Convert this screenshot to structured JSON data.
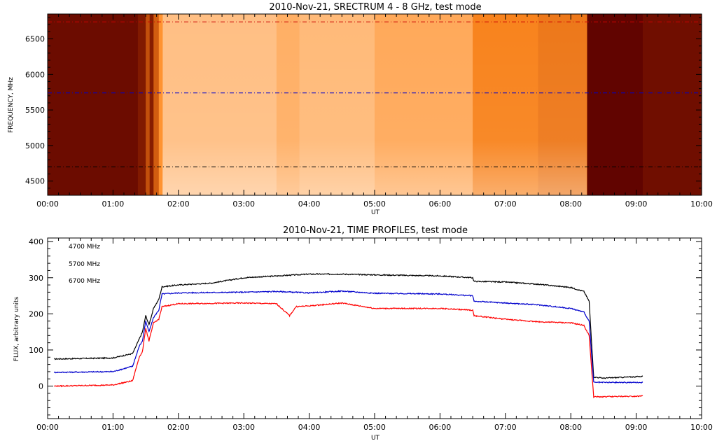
{
  "chart_data": [
    {
      "type": "heatmap",
      "title": "2010-Nov-21,  SRECTRUM 4 - 8 GHz,  test mode",
      "xlabel": "UT",
      "ylabel": "FREQUENCY, MHz",
      "x_ticks": [
        "00:00",
        "01:00",
        "02:00",
        "03:00",
        "04:00",
        "05:00",
        "06:00",
        "07:00",
        "08:00",
        "09:00",
        "10:00"
      ],
      "xlim_hours": [
        0,
        10
      ],
      "y_ticks": [
        4500,
        5000,
        5500,
        6000,
        6500
      ],
      "ylim": [
        4300,
        6850
      ],
      "colormap": [
        "#5a0000",
        "#a33000",
        "#ff8a20",
        "#ffe6cc"
      ],
      "time_segments": [
        {
          "start": 0.0,
          "end": 1.38,
          "level": 0.08
        },
        {
          "start": 1.38,
          "end": 1.5,
          "level": 0.18
        },
        {
          "start": 1.5,
          "end": 1.56,
          "level": 0.45
        },
        {
          "start": 1.56,
          "end": 1.62,
          "level": 0.2
        },
        {
          "start": 1.62,
          "end": 1.7,
          "level": 0.5
        },
        {
          "start": 1.7,
          "end": 1.76,
          "level": 0.7
        },
        {
          "start": 1.76,
          "end": 3.5,
          "level": 0.86
        },
        {
          "start": 3.5,
          "end": 3.85,
          "level": 0.8
        },
        {
          "start": 3.85,
          "end": 5.0,
          "level": 0.84
        },
        {
          "start": 5.0,
          "end": 6.5,
          "level": 0.78
        },
        {
          "start": 6.5,
          "end": 7.5,
          "level": 0.64
        },
        {
          "start": 7.5,
          "end": 8.25,
          "level": 0.6
        },
        {
          "start": 8.25,
          "end": 9.1,
          "level": 0.03
        },
        {
          "start": 9.1,
          "end": 10.0,
          "level": 0.1
        }
      ],
      "reference_lines": [
        {
          "freq": 4700,
          "color": "#000000"
        },
        {
          "freq": 5740,
          "color": "#0000cc"
        },
        {
          "freq": 6740,
          "color": "#cc0000"
        }
      ]
    },
    {
      "type": "line",
      "title": "2010-Nov-21,  TIME PROFILES,  test mode",
      "xlabel": "UT",
      "ylabel": "FLUX, arbitrary units",
      "x_ticks": [
        "00:00",
        "01:00",
        "02:00",
        "03:00",
        "04:00",
        "05:00",
        "06:00",
        "07:00",
        "08:00",
        "09:00",
        "10:00"
      ],
      "xlim_hours": [
        0,
        10
      ],
      "y_ticks": [
        0,
        100,
        200,
        300,
        400
      ],
      "ylim": [
        -90,
        410
      ],
      "legend_position": "top-left",
      "series": [
        {
          "name": "4700 MHz",
          "color": "#000000",
          "x": [
            0.1,
            1.0,
            1.3,
            1.4,
            1.45,
            1.5,
            1.55,
            1.62,
            1.7,
            1.75,
            2.0,
            2.5,
            3.0,
            3.5,
            4.0,
            4.5,
            5.0,
            6.0,
            6.5,
            6.52,
            7.0,
            7.5,
            8.0,
            8.2,
            8.28,
            8.35,
            8.5,
            9.0,
            9.1
          ],
          "y": [
            75,
            78,
            90,
            130,
            150,
            195,
            170,
            215,
            240,
            275,
            280,
            285,
            300,
            305,
            310,
            310,
            308,
            305,
            300,
            290,
            288,
            282,
            273,
            262,
            235,
            25,
            22,
            26,
            27
          ]
        },
        {
          "name": "5700 MHz",
          "color": "#0000cc",
          "x": [
            0.1,
            1.0,
            1.3,
            1.4,
            1.45,
            1.5,
            1.55,
            1.62,
            1.7,
            1.75,
            2.0,
            3.0,
            3.5,
            4.0,
            4.5,
            5.0,
            6.0,
            6.5,
            6.52,
            7.0,
            7.5,
            8.0,
            8.2,
            8.28,
            8.35,
            9.0,
            9.1
          ],
          "y": [
            38,
            40,
            55,
            110,
            125,
            180,
            150,
            190,
            210,
            255,
            258,
            260,
            262,
            258,
            263,
            257,
            255,
            250,
            235,
            230,
            225,
            215,
            205,
            180,
            10,
            10,
            10
          ]
        },
        {
          "name": "6700 MHz",
          "color": "#ff0000",
          "x": [
            0.1,
            1.0,
            1.3,
            1.4,
            1.45,
            1.5,
            1.55,
            1.62,
            1.7,
            1.75,
            2.0,
            3.0,
            3.5,
            3.7,
            3.8,
            4.0,
            4.5,
            5.0,
            6.0,
            6.5,
            6.52,
            7.0,
            7.5,
            8.0,
            8.2,
            8.28,
            8.35,
            9.0,
            9.1
          ],
          "y": [
            0,
            3,
            15,
            80,
            95,
            160,
            125,
            175,
            185,
            220,
            228,
            230,
            228,
            195,
            220,
            222,
            230,
            215,
            215,
            210,
            195,
            185,
            178,
            175,
            168,
            140,
            -30,
            -28,
            -27
          ]
        }
      ]
    }
  ]
}
